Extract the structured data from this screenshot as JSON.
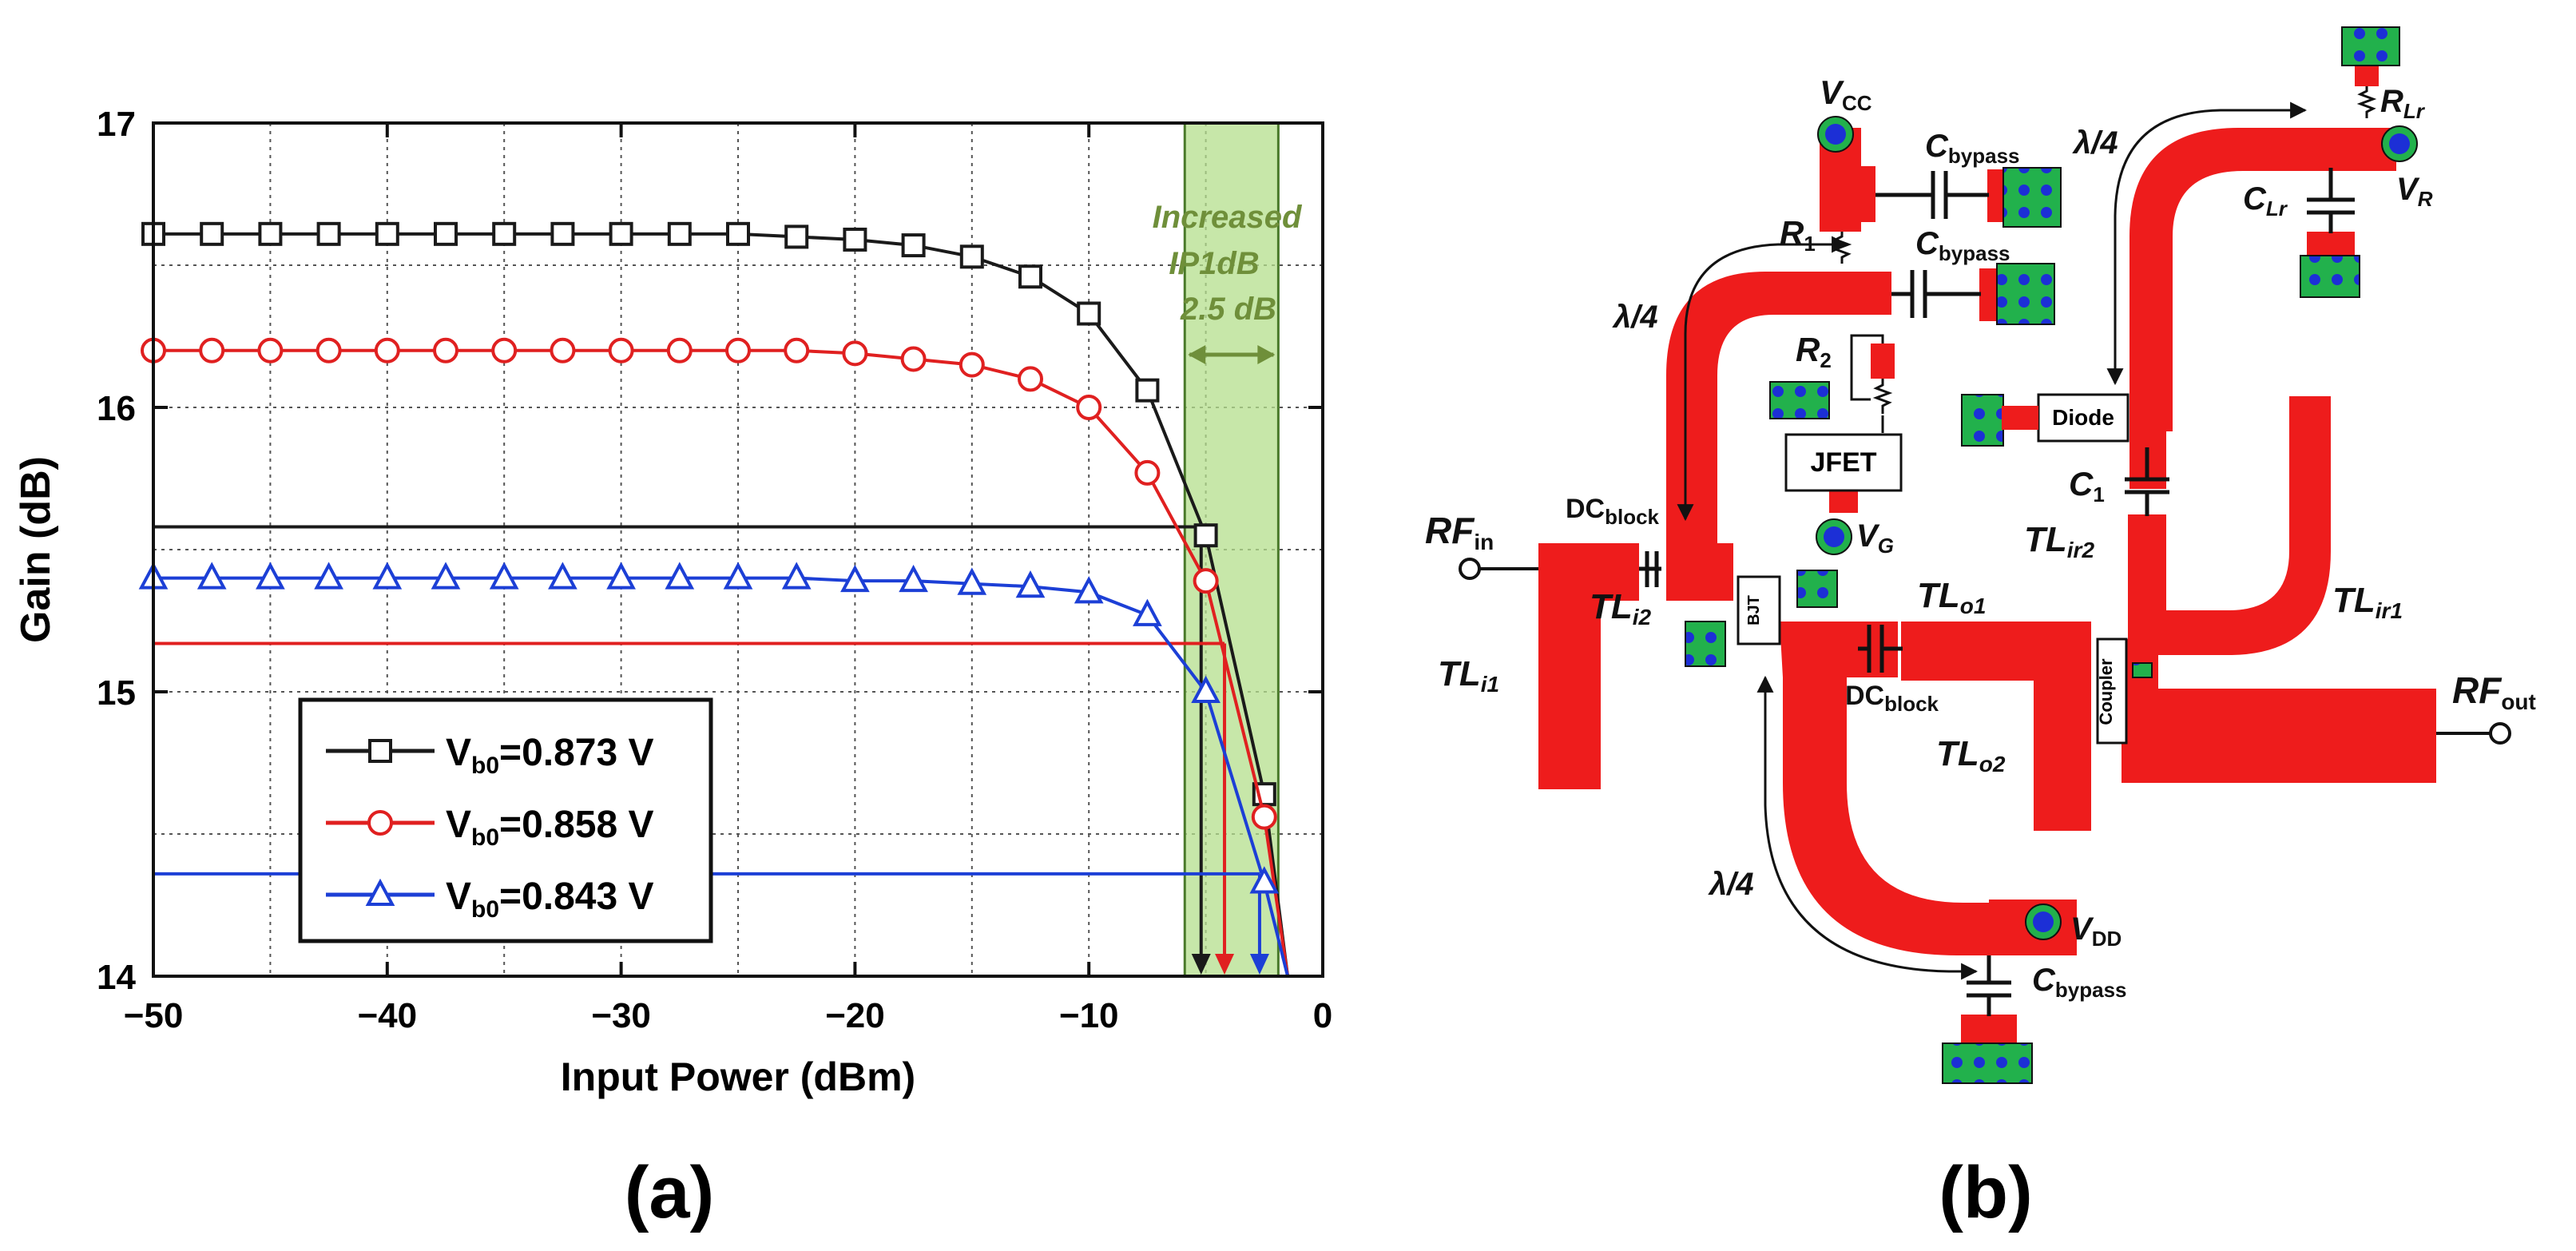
{
  "panels": {
    "a_label": "(a)",
    "b_label": "(b)"
  },
  "chart_data": {
    "type": "line",
    "title": "",
    "xlabel": "Input Power (dBm)",
    "ylabel": "Gain (dB)",
    "xlim": [
      -50,
      0
    ],
    "ylim": [
      14,
      17
    ],
    "x_ticks": [
      -50,
      -40,
      -30,
      -20,
      -10,
      0
    ],
    "x_tick_labels": [
      "−50",
      "−40",
      "−30",
      "−20",
      "−10",
      "0"
    ],
    "y_ticks": [
      14,
      15,
      16,
      17
    ],
    "y_tick_labels": [
      "14",
      "15",
      "16",
      "17"
    ],
    "grid": true,
    "legend": "bottom-left",
    "series": [
      {
        "name": "V_b0=0.873 V",
        "legend_main": "V",
        "legend_sub": "b0",
        "legend_rest": "=0.873 V",
        "color": "#1a1a1a",
        "marker": "square",
        "x": [
          -50,
          -47.5,
          -45,
          -42.5,
          -40,
          -37.5,
          -35,
          -32.5,
          -30,
          -27.5,
          -25,
          -22.5,
          -20,
          -17.5,
          -15,
          -12.5,
          -10,
          -7.5,
          -5,
          -2.5,
          -1.5
        ],
        "y": [
          16.61,
          16.61,
          16.61,
          16.61,
          16.61,
          16.61,
          16.61,
          16.61,
          16.61,
          16.61,
          16.61,
          16.6,
          16.59,
          16.57,
          16.53,
          16.46,
          16.33,
          16.06,
          15.55,
          14.64,
          14.0
        ],
        "reference_gain": 15.58,
        "ip1db": -5.2
      },
      {
        "name": "V_b0=0.858 V",
        "legend_main": "V",
        "legend_sub": "b0",
        "legend_rest": "=0.858 V",
        "color": "#e02020",
        "marker": "circle",
        "x": [
          -50,
          -47.5,
          -45,
          -42.5,
          -40,
          -37.5,
          -35,
          -32.5,
          -30,
          -27.5,
          -25,
          -22.5,
          -20,
          -17.5,
          -15,
          -12.5,
          -10,
          -7.5,
          -5,
          -2.5,
          -1.5
        ],
        "y": [
          16.2,
          16.2,
          16.2,
          16.2,
          16.2,
          16.2,
          16.2,
          16.2,
          16.2,
          16.2,
          16.2,
          16.2,
          16.19,
          16.17,
          16.15,
          16.1,
          16.0,
          15.77,
          15.39,
          14.56,
          14.0
        ],
        "reference_gain": 15.17,
        "ip1db": -4.2
      },
      {
        "name": "V_b0=0.843 V",
        "legend_main": "V",
        "legend_sub": "b0",
        "legend_rest": "=0.843 V",
        "color": "#1c3fd6",
        "marker": "triangle",
        "x": [
          -50,
          -47.5,
          -45,
          -42.5,
          -40,
          -37.5,
          -35,
          -32.5,
          -30,
          -27.5,
          -25,
          -22.5,
          -20,
          -17.5,
          -15,
          -12.5,
          -10,
          -7.5,
          -5,
          -2.5,
          -1.5
        ],
        "y": [
          15.4,
          15.4,
          15.4,
          15.4,
          15.4,
          15.4,
          15.4,
          15.4,
          15.4,
          15.4,
          15.4,
          15.4,
          15.39,
          15.39,
          15.38,
          15.37,
          15.35,
          15.27,
          15.0,
          14.33,
          14.0
        ],
        "reference_gain": 14.36,
        "ip1db": -2.7
      }
    ],
    "highlight_region": {
      "x_start": -5.9,
      "x_end": -1.9,
      "color": "#b4df8c",
      "text_lines": [
        "Increased",
        "IP1dB",
        "2.5 dB"
      ],
      "text_color": "#6f8f3a"
    }
  },
  "circuit": {
    "labels": {
      "vcc": "V",
      "vcc_sub": "CC",
      "cbypass1": "C",
      "cbypass1_sub": "bypass",
      "cbypass2": "C",
      "cbypass2_sub": "bypass",
      "cbypass3": "C",
      "cbypass3_sub": "bypass",
      "r1": "R",
      "r1_sub": "1",
      "r2": "R",
      "r2_sub": "2",
      "lambda1": "λ/4",
      "lambda2": "λ/4",
      "lambda3": "λ/4",
      "jfet": "JFET",
      "vg": "V",
      "vg_sub": "G",
      "dcblock1": "DC",
      "dcblock1_sub": "block",
      "dcblock2": "DC",
      "dcblock2_sub": "block",
      "rfin": "RF",
      "rfin_sub": "in",
      "rfout": "RF",
      "rfout_sub": "out",
      "tli1": "TL",
      "tli1_sub": "i1",
      "tli2": "TL",
      "tli2_sub": "i2",
      "tlo1": "TL",
      "tlo1_sub": "o1",
      "tlo2": "TL",
      "tlo2_sub": "o2",
      "tlir1": "TL",
      "tlir1_sub": "ir1",
      "tlir2": "TL",
      "tlir2_sub": "ir2",
      "bjt": "BJT",
      "coupler": "Coupler",
      "diode": "Diode",
      "c1": "C",
      "c1_sub": "1",
      "vdd": "V",
      "vdd_sub": "DD",
      "rlr": "R",
      "rlr_sub": "Lr",
      "clr": "C",
      "clr_sub": "Lr",
      "vr": "V",
      "vr_sub": "R"
    },
    "colors": {
      "trace": "#ee1c1c",
      "pad": "#22b14c",
      "via": "#1c2fd6"
    }
  }
}
